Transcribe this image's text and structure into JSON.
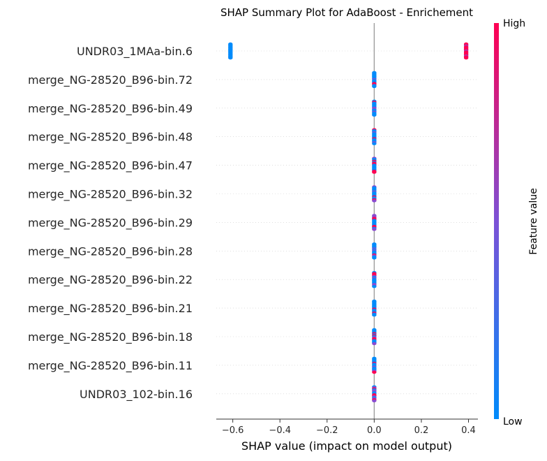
{
  "chart_data": {
    "type": "scatter",
    "title": "SHAP Summary Plot for AdaBoost - Enrichement",
    "xlabel": "SHAP value (impact on model output)",
    "ylabel": "",
    "xlim": [
      -0.67,
      0.44
    ],
    "xticks": [
      {
        "value": -0.6,
        "label": "−0.6"
      },
      {
        "value": -0.4,
        "label": "−0.4"
      },
      {
        "value": -0.2,
        "label": "−0.2"
      },
      {
        "value": 0.0,
        "label": "0.0"
      },
      {
        "value": 0.2,
        "label": "0.2"
      },
      {
        "value": 0.4,
        "label": "0.4"
      }
    ],
    "grid": false,
    "colorbar": {
      "title": "Feature value",
      "high_label": "High",
      "low_label": "Low",
      "low_color": "#008bfb",
      "high_color": "#ff0052"
    },
    "features": [
      {
        "name": "UNDR03_1MAa-bin.6",
        "clusters": [
          {
            "x": -0.61,
            "color": "low"
          },
          {
            "x": 0.39,
            "color": "high"
          }
        ]
      },
      {
        "name": "merge_NG-28520_B96-bin.72",
        "clusters": [
          {
            "x": 0.0,
            "color": "mixed"
          }
        ]
      },
      {
        "name": "merge_NG-28520_B96-bin.49",
        "clusters": [
          {
            "x": 0.0,
            "color": "mixed"
          }
        ]
      },
      {
        "name": "merge_NG-28520_B96-bin.48",
        "clusters": [
          {
            "x": 0.0,
            "color": "mixed"
          }
        ]
      },
      {
        "name": "merge_NG-28520_B96-bin.47",
        "clusters": [
          {
            "x": 0.0,
            "color": "mixed"
          }
        ]
      },
      {
        "name": "merge_NG-28520_B96-bin.32",
        "clusters": [
          {
            "x": 0.0,
            "color": "mixed"
          }
        ]
      },
      {
        "name": "merge_NG-28520_B96-bin.29",
        "clusters": [
          {
            "x": 0.0,
            "color": "mixed"
          }
        ]
      },
      {
        "name": "merge_NG-28520_B96-bin.28",
        "clusters": [
          {
            "x": 0.0,
            "color": "mixed"
          }
        ]
      },
      {
        "name": "merge_NG-28520_B96-bin.22",
        "clusters": [
          {
            "x": 0.0,
            "color": "mixed"
          }
        ]
      },
      {
        "name": "merge_NG-28520_B96-bin.21",
        "clusters": [
          {
            "x": 0.0,
            "color": "mixed"
          }
        ]
      },
      {
        "name": "merge_NG-28520_B96-bin.18",
        "clusters": [
          {
            "x": 0.0,
            "color": "mixed"
          }
        ]
      },
      {
        "name": "merge_NG-28520_B96-bin.11",
        "clusters": [
          {
            "x": 0.0,
            "color": "mixed"
          }
        ]
      },
      {
        "name": "UNDR03_102-bin.16",
        "clusters": [
          {
            "x": 0.0,
            "color": "mixed"
          }
        ]
      }
    ]
  }
}
